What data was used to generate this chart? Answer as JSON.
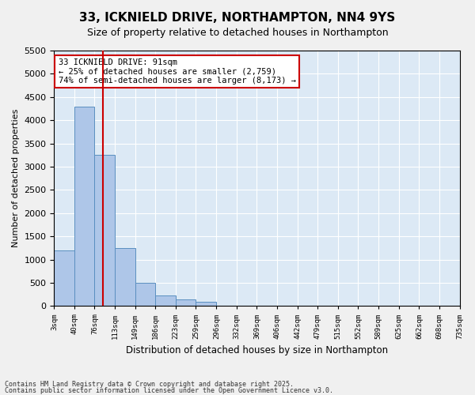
{
  "title_line1": "33, ICKNIELD DRIVE, NORTHAMPTON, NN4 9YS",
  "title_line2": "Size of property relative to detached houses in Northampton",
  "xlabel": "Distribution of detached houses by size in Northampton",
  "ylabel": "Number of detached properties",
  "bar_color": "#aec6e8",
  "bar_edge_color": "#5a8fc0",
  "bg_color": "#dce9f5",
  "grid_color": "#ffffff",
  "annotation_text": "33 ICKNIELD DRIVE: 91sqm\n← 25% of detached houses are smaller (2,759)\n74% of semi-detached houses are larger (8,173) →",
  "annotation_box_color": "#cc0000",
  "vline_x": 91,
  "vline_color": "#cc0000",
  "ylim": [
    0,
    5500
  ],
  "yticks": [
    0,
    500,
    1000,
    1500,
    2000,
    2500,
    3000,
    3500,
    4000,
    4500,
    5000,
    5500
  ],
  "bin_edges": [
    3,
    40,
    76,
    113,
    149,
    186,
    223,
    259,
    296,
    332,
    369,
    406,
    442,
    479,
    515,
    552,
    589,
    625,
    662,
    698,
    735
  ],
  "bar_heights": [
    1200,
    4300,
    3250,
    1250,
    500,
    230,
    150,
    100,
    0,
    0,
    0,
    0,
    0,
    0,
    0,
    0,
    0,
    0,
    0,
    0
  ],
  "tick_labels": [
    "3sqm",
    "40sqm",
    "76sqm",
    "113sqm",
    "149sqm",
    "186sqm",
    "223sqm",
    "259sqm",
    "296sqm",
    "332sqm",
    "369sqm",
    "406sqm",
    "442sqm",
    "479sqm",
    "515sqm",
    "552sqm",
    "589sqm",
    "625sqm",
    "662sqm",
    "698sqm",
    "735sqm"
  ],
  "footer_line1": "Contains HM Land Registry data © Crown copyright and database right 2025.",
  "footer_line2": "Contains public sector information licensed under the Open Government Licence v3.0."
}
